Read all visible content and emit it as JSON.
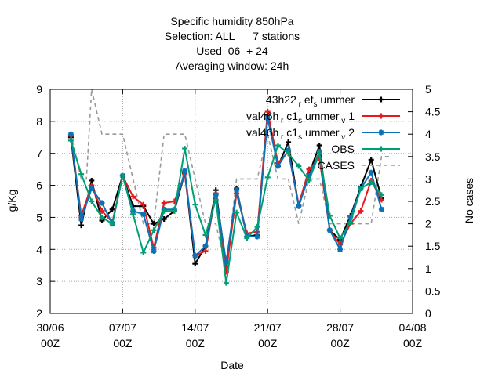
{
  "title_lines": [
    "Specific humidity 850hPa",
    "Selection: ALL      7 stations",
    "Used  06  + 24",
    "Averaging window: 24h"
  ],
  "chart_data": {
    "type": "line",
    "xlabel": "Date",
    "ylabel": "g/Kg",
    "y2label": "No cases",
    "grid": true,
    "legend_position": "top-right",
    "x_range": [
      "2019-06-30T00",
      "2019-08-04T00"
    ],
    "x_ticks": [
      {
        "line1": "30/06",
        "line2": "00Z",
        "day": 0
      },
      {
        "line1": "07/07",
        "line2": "00Z",
        "day": 7
      },
      {
        "line1": "14/07",
        "line2": "00Z",
        "day": 14
      },
      {
        "line1": "21/07",
        "line2": "00Z",
        "day": 21
      },
      {
        "line1": "28/07",
        "line2": "00Z",
        "day": 28
      },
      {
        "line1": "04/08",
        "line2": "00Z",
        "day": 35
      }
    ],
    "ylim": [
      2,
      9
    ],
    "y_ticks": [
      "2",
      "3",
      "4",
      "5",
      "6",
      "7",
      "8",
      "9"
    ],
    "y2lim": [
      0,
      5
    ],
    "y2_ticks": [
      "0",
      "0.5",
      "1",
      "1.5",
      "2",
      "2.5",
      "3",
      "3.5",
      "4",
      "4.5",
      "5"
    ],
    "x_days": [
      2,
      3,
      4,
      5,
      6,
      7,
      8,
      9,
      10,
      11,
      12,
      13,
      14,
      15,
      16,
      17,
      18,
      19,
      20,
      21,
      22,
      23,
      24,
      25,
      26,
      27,
      28,
      29,
      30,
      31,
      32,
      33
    ],
    "series": [
      {
        "name": "43h22_ref_summer",
        "legend_label": {
          "base": "43h22",
          "sub1": "r",
          "mid": "ef",
          "sub2": "s",
          "tail": "ummer"
        },
        "color": "#000000",
        "marker": "plus",
        "axis": "y1",
        "values": [
          7.5,
          4.75,
          6.15,
          4.9,
          5.25,
          6.3,
          5.35,
          5.35,
          4.8,
          4.95,
          5.2,
          6.4,
          3.55,
          4.1,
          5.85,
          3.45,
          5.9,
          4.4,
          4.45,
          8.2,
          6.6,
          7.35,
          5.35,
          6.35,
          7.25,
          4.6,
          4.3,
          5.05,
          5.95,
          6.8,
          5.6,
          null
        ]
      },
      {
        "name": "val46h_rc1_summer_v1",
        "legend_label": {
          "base": "val46h",
          "sub1": "r",
          "mid": "c1",
          "sub2": "s",
          "tail": "ummer",
          "sub3": "v",
          "end": "1"
        },
        "color": "#e41a1c",
        "marker": "plus",
        "axis": "y1",
        "values": [
          7.55,
          5.05,
          6.0,
          5.2,
          4.85,
          6.3,
          5.65,
          5.4,
          4.05,
          5.45,
          5.5,
          6.35,
          3.8,
          3.95,
          5.75,
          3.3,
          5.75,
          4.5,
          4.55,
          8.3,
          6.7,
          7.05,
          5.4,
          6.5,
          6.85,
          4.6,
          4.15,
          4.8,
          5.2,
          6.15,
          5.55,
          null
        ]
      },
      {
        "name": "val46h_rc1_summer_v2",
        "legend_label": {
          "base": "val46h",
          "sub1": "r",
          "mid": "c1",
          "sub2": "s",
          "tail": "ummer",
          "sub3": "v",
          "end": "2"
        },
        "color": "#0b72b5",
        "marker": "star",
        "axis": "y1",
        "values": [
          7.6,
          4.95,
          5.9,
          5.45,
          4.8,
          6.3,
          5.2,
          5.1,
          3.95,
          5.25,
          5.25,
          6.45,
          3.8,
          4.1,
          5.7,
          3.6,
          5.85,
          4.4,
          4.4,
          8.1,
          6.6,
          7.1,
          5.35,
          6.3,
          7.05,
          4.6,
          4.0,
          5.0,
          5.9,
          6.4,
          5.25,
          null
        ]
      },
      {
        "name": "OBS",
        "legend_label": {
          "base": "OBS"
        },
        "color": "#009e73",
        "marker": "plus",
        "axis": "y1",
        "values": [
          7.4,
          6.35,
          5.5,
          5.0,
          4.8,
          6.3,
          5.1,
          3.9,
          4.6,
          5.2,
          5.2,
          7.15,
          5.4,
          4.45,
          5.55,
          2.95,
          5.15,
          4.35,
          4.7,
          6.25,
          7.25,
          7.0,
          6.6,
          6.15,
          7.0,
          5.05,
          4.35,
          4.85,
          5.9,
          6.1,
          5.7,
          null
        ]
      },
      {
        "name": "CASES",
        "legend_label": {
          "base": "CASES"
        },
        "color": "#9a9a9a",
        "marker": "none",
        "dashed": true,
        "axis": "y2",
        "x_days": [
          2,
          3,
          3.5,
          4,
          5,
          7,
          8,
          9,
          10,
          11,
          13,
          14,
          15,
          16,
          17,
          18,
          19,
          20,
          21,
          22,
          23,
          24,
          25,
          26,
          27,
          28,
          29,
          30,
          31,
          32,
          33
        ],
        "values": [
          4,
          3,
          3,
          5,
          4,
          4,
          3,
          2,
          2,
          4,
          4,
          3,
          2,
          2,
          1,
          3,
          3,
          3,
          4,
          3,
          3,
          2,
          3,
          3,
          2,
          2,
          2,
          2,
          2,
          3.5,
          3.5
        ]
      }
    ]
  }
}
